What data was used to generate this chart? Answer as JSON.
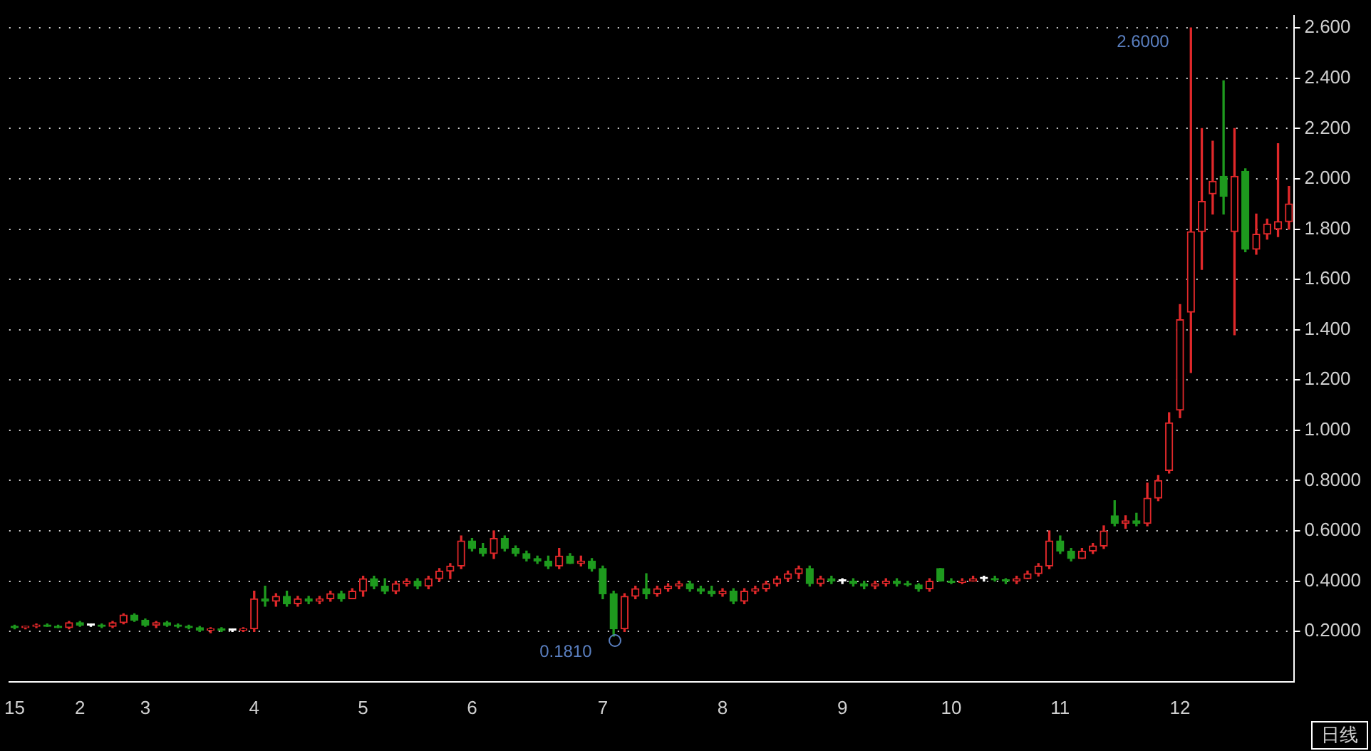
{
  "chart_data": {
    "type": "candlestick",
    "categories": [
      "15",
      null,
      null,
      null,
      null,
      null,
      "2",
      null,
      null,
      null,
      null,
      null,
      "3",
      null,
      null,
      null,
      null,
      null,
      null,
      null,
      null,
      null,
      "4",
      null,
      null,
      null,
      null,
      null,
      null,
      null,
      null,
      null,
      "5",
      null,
      null,
      null,
      null,
      null,
      null,
      null,
      null,
      null,
      "6",
      null,
      null,
      null,
      null,
      null,
      null,
      null,
      null,
      null,
      null,
      null,
      "7",
      null,
      null,
      null,
      null,
      null,
      null,
      null,
      null,
      null,
      null,
      "8",
      null,
      null,
      null,
      null,
      null,
      null,
      null,
      null,
      null,
      null,
      "9",
      null,
      null,
      null,
      null,
      null,
      null,
      null,
      null,
      null,
      "10",
      null,
      null,
      null,
      null,
      null,
      null,
      null,
      null,
      null,
      "11",
      null,
      null,
      null,
      null,
      null,
      null,
      null,
      null,
      null,
      null,
      "12",
      null,
      null,
      null,
      null,
      null,
      null,
      null,
      null,
      null,
      null
    ],
    "ohlc": [
      [
        0.22,
        0.225,
        0.21,
        0.215
      ],
      [
        0.215,
        0.22,
        0.21,
        0.22
      ],
      [
        0.22,
        0.23,
        0.215,
        0.225
      ],
      [
        0.225,
        0.23,
        0.22,
        0.22
      ],
      [
        0.22,
        0.225,
        0.215,
        0.215
      ],
      [
        0.215,
        0.24,
        0.21,
        0.235
      ],
      [
        0.235,
        0.24,
        0.22,
        0.225
      ],
      [
        0.225,
        0.23,
        0.22,
        0.225
      ],
      [
        0.225,
        0.23,
        0.215,
        0.22
      ],
      [
        0.22,
        0.24,
        0.215,
        0.235
      ],
      [
        0.235,
        0.27,
        0.23,
        0.265
      ],
      [
        0.265,
        0.27,
        0.24,
        0.245
      ],
      [
        0.245,
        0.25,
        0.22,
        0.225
      ],
      [
        0.225,
        0.24,
        0.215,
        0.235
      ],
      [
        0.235,
        0.24,
        0.22,
        0.225
      ],
      [
        0.225,
        0.23,
        0.215,
        0.22
      ],
      [
        0.22,
        0.225,
        0.21,
        0.215
      ],
      [
        0.215,
        0.22,
        0.2,
        0.205
      ],
      [
        0.205,
        0.215,
        0.195,
        0.21
      ],
      [
        0.21,
        0.215,
        0.2,
        0.205
      ],
      [
        0.205,
        0.21,
        0.2,
        0.205
      ],
      [
        0.205,
        0.215,
        0.2,
        0.21
      ],
      [
        0.21,
        0.36,
        0.2,
        0.33
      ],
      [
        0.33,
        0.38,
        0.3,
        0.32
      ],
      [
        0.32,
        0.35,
        0.3,
        0.34
      ],
      [
        0.34,
        0.36,
        0.3,
        0.31
      ],
      [
        0.31,
        0.34,
        0.3,
        0.33
      ],
      [
        0.33,
        0.34,
        0.31,
        0.32
      ],
      [
        0.32,
        0.34,
        0.31,
        0.33
      ],
      [
        0.33,
        0.36,
        0.32,
        0.35
      ],
      [
        0.35,
        0.36,
        0.32,
        0.33
      ],
      [
        0.33,
        0.37,
        0.33,
        0.36
      ],
      [
        0.36,
        0.42,
        0.34,
        0.41
      ],
      [
        0.41,
        0.42,
        0.37,
        0.38
      ],
      [
        0.38,
        0.41,
        0.35,
        0.36
      ],
      [
        0.36,
        0.4,
        0.35,
        0.39
      ],
      [
        0.39,
        0.41,
        0.38,
        0.4
      ],
      [
        0.4,
        0.41,
        0.37,
        0.38
      ],
      [
        0.38,
        0.42,
        0.37,
        0.41
      ],
      [
        0.41,
        0.45,
        0.4,
        0.44
      ],
      [
        0.44,
        0.47,
        0.41,
        0.46
      ],
      [
        0.46,
        0.58,
        0.45,
        0.56
      ],
      [
        0.56,
        0.57,
        0.52,
        0.53
      ],
      [
        0.53,
        0.55,
        0.5,
        0.51
      ],
      [
        0.51,
        0.6,
        0.49,
        0.57
      ],
      [
        0.57,
        0.58,
        0.52,
        0.53
      ],
      [
        0.53,
        0.54,
        0.5,
        0.51
      ],
      [
        0.51,
        0.52,
        0.48,
        0.49
      ],
      [
        0.49,
        0.5,
        0.47,
        0.48
      ],
      [
        0.48,
        0.5,
        0.45,
        0.46
      ],
      [
        0.46,
        0.53,
        0.45,
        0.5
      ],
      [
        0.5,
        0.51,
        0.47,
        0.47
      ],
      [
        0.47,
        0.5,
        0.46,
        0.48
      ],
      [
        0.48,
        0.49,
        0.44,
        0.45
      ],
      [
        0.45,
        0.46,
        0.33,
        0.35
      ],
      [
        0.35,
        0.36,
        0.181,
        0.21
      ],
      [
        0.21,
        0.35,
        0.2,
        0.34
      ],
      [
        0.34,
        0.38,
        0.33,
        0.37
      ],
      [
        0.37,
        0.43,
        0.33,
        0.35
      ],
      [
        0.35,
        0.38,
        0.34,
        0.37
      ],
      [
        0.37,
        0.39,
        0.36,
        0.38
      ],
      [
        0.38,
        0.4,
        0.37,
        0.39
      ],
      [
        0.39,
        0.4,
        0.36,
        0.37
      ],
      [
        0.37,
        0.38,
        0.35,
        0.36
      ],
      [
        0.36,
        0.38,
        0.34,
        0.35
      ],
      [
        0.35,
        0.37,
        0.34,
        0.36
      ],
      [
        0.36,
        0.37,
        0.31,
        0.32
      ],
      [
        0.32,
        0.37,
        0.31,
        0.36
      ],
      [
        0.36,
        0.38,
        0.35,
        0.37
      ],
      [
        0.37,
        0.4,
        0.36,
        0.39
      ],
      [
        0.39,
        0.42,
        0.38,
        0.41
      ],
      [
        0.41,
        0.44,
        0.4,
        0.43
      ],
      [
        0.43,
        0.46,
        0.41,
        0.45
      ],
      [
        0.45,
        0.46,
        0.38,
        0.39
      ],
      [
        0.39,
        0.42,
        0.38,
        0.41
      ],
      [
        0.41,
        0.42,
        0.39,
        0.4
      ],
      [
        0.4,
        0.41,
        0.39,
        0.4
      ],
      [
        0.4,
        0.41,
        0.38,
        0.39
      ],
      [
        0.39,
        0.4,
        0.37,
        0.38
      ],
      [
        0.38,
        0.4,
        0.37,
        0.39
      ],
      [
        0.39,
        0.41,
        0.38,
        0.4
      ],
      [
        0.4,
        0.41,
        0.38,
        0.39
      ],
      [
        0.39,
        0.4,
        0.38,
        0.385
      ],
      [
        0.385,
        0.39,
        0.36,
        0.37
      ],
      [
        0.37,
        0.41,
        0.36,
        0.4
      ],
      [
        0.45,
        0.45,
        0.4,
        0.4
      ],
      [
        0.4,
        0.41,
        0.39,
        0.395
      ],
      [
        0.395,
        0.41,
        0.39,
        0.4
      ],
      [
        0.4,
        0.42,
        0.4,
        0.41
      ],
      [
        0.41,
        0.42,
        0.4,
        0.41
      ],
      [
        0.41,
        0.42,
        0.4,
        0.405
      ],
      [
        0.405,
        0.41,
        0.39,
        0.4
      ],
      [
        0.4,
        0.42,
        0.39,
        0.41
      ],
      [
        0.41,
        0.44,
        0.41,
        0.43
      ],
      [
        0.43,
        0.47,
        0.42,
        0.46
      ],
      [
        0.46,
        0.6,
        0.45,
        0.56
      ],
      [
        0.56,
        0.58,
        0.51,
        0.52
      ],
      [
        0.52,
        0.53,
        0.48,
        0.49
      ],
      [
        0.49,
        0.53,
        0.49,
        0.52
      ],
      [
        0.52,
        0.55,
        0.51,
        0.54
      ],
      [
        0.54,
        0.62,
        0.53,
        0.6
      ],
      [
        0.66,
        0.72,
        0.62,
        0.63
      ],
      [
        0.63,
        0.66,
        0.61,
        0.64
      ],
      [
        0.64,
        0.67,
        0.62,
        0.63
      ],
      [
        0.63,
        0.79,
        0.62,
        0.73
      ],
      [
        0.73,
        0.82,
        0.72,
        0.8
      ],
      [
        0.84,
        1.07,
        0.83,
        1.03
      ],
      [
        1.08,
        1.5,
        1.05,
        1.44
      ],
      [
        1.47,
        2.6,
        1.23,
        1.79
      ],
      [
        1.79,
        2.2,
        1.64,
        1.91
      ],
      [
        1.94,
        2.15,
        1.86,
        1.99
      ],
      [
        2.01,
        2.39,
        1.86,
        1.93
      ],
      [
        1.79,
        2.2,
        1.38,
        2.01
      ],
      [
        2.03,
        2.04,
        1.71,
        1.72
      ],
      [
        1.72,
        1.86,
        1.7,
        1.78
      ],
      [
        1.78,
        1.84,
        1.76,
        1.82
      ],
      [
        1.8,
        2.14,
        1.77,
        1.83
      ],
      [
        1.83,
        1.97,
        1.8,
        1.9
      ]
    ],
    "colors": [
      "#1e9a1e",
      "#e0282a",
      "#e0282a",
      "#1e9a1e",
      "#1e9a1e",
      "#e0282a",
      "#1e9a1e",
      "#ffffff",
      "#1e9a1e",
      "#e0282a",
      "#e0282a",
      "#1e9a1e",
      "#1e9a1e",
      "#e0282a",
      "#1e9a1e",
      "#1e9a1e",
      "#1e9a1e",
      "#1e9a1e",
      "#e0282a",
      "#1e9a1e",
      "#ffffff",
      "#e0282a",
      "#e0282a",
      "#1e9a1e",
      "#e0282a",
      "#1e9a1e",
      "#e0282a",
      "#1e9a1e",
      "#e0282a",
      "#e0282a",
      "#1e9a1e",
      "#e0282a",
      "#e0282a",
      "#1e9a1e",
      "#1e9a1e",
      "#e0282a",
      "#e0282a",
      "#1e9a1e",
      "#e0282a",
      "#e0282a",
      "#e0282a",
      "#e0282a",
      "#1e9a1e",
      "#1e9a1e",
      "#e0282a",
      "#1e9a1e",
      "#1e9a1e",
      "#1e9a1e",
      "#1e9a1e",
      "#1e9a1e",
      "#e0282a",
      "#1e9a1e",
      "#e0282a",
      "#1e9a1e",
      "#1e9a1e",
      "#1e9a1e",
      "#e0282a",
      "#e0282a",
      "#1e9a1e",
      "#e0282a",
      "#e0282a",
      "#e0282a",
      "#1e9a1e",
      "#1e9a1e",
      "#1e9a1e",
      "#e0282a",
      "#1e9a1e",
      "#e0282a",
      "#e0282a",
      "#e0282a",
      "#e0282a",
      "#e0282a",
      "#e0282a",
      "#1e9a1e",
      "#e0282a",
      "#1e9a1e",
      "#ffffff",
      "#1e9a1e",
      "#1e9a1e",
      "#e0282a",
      "#e0282a",
      "#1e9a1e",
      "#1e9a1e",
      "#1e9a1e",
      "#e0282a",
      "#1e9a1e",
      "#1e9a1e",
      "#e0282a",
      "#e0282a",
      "#ffffff",
      "#1e9a1e",
      "#1e9a1e",
      "#e0282a",
      "#e0282a",
      "#e0282a",
      "#e0282a",
      "#1e9a1e",
      "#1e9a1e",
      "#e0282a",
      "#e0282a",
      "#e0282a",
      "#1e9a1e",
      "#e0282a",
      "#1e9a1e",
      "#e0282a",
      "#e0282a",
      "#e0282a",
      "#e0282a",
      "#e0282a",
      "#e0282a",
      "#e0282a",
      "#1e9a1e",
      "#e0282a",
      "#1e9a1e",
      "#e0282a",
      "#e0282a",
      "#e0282a",
      "#e0282a"
    ],
    "ylim": [
      0,
      2.65
    ],
    "yticks": [
      {
        "value": 0.2,
        "label": "0.2000"
      },
      {
        "value": 0.4,
        "label": "0.4000"
      },
      {
        "value": 0.6,
        "label": "0.6000"
      },
      {
        "value": 0.8,
        "label": "0.8000"
      },
      {
        "value": 1.0,
        "label": "1.000"
      },
      {
        "value": 1.2,
        "label": "1.200"
      },
      {
        "value": 1.4,
        "label": "1.400"
      },
      {
        "value": 1.6,
        "label": "1.600"
      },
      {
        "value": 1.8,
        "label": "1.800"
      },
      {
        "value": 2.0,
        "label": "2.000"
      },
      {
        "value": 2.2,
        "label": "2.200"
      },
      {
        "value": 2.4,
        "label": "2.400"
      },
      {
        "value": 2.6,
        "label": "2.600"
      }
    ],
    "grid": "y",
    "annotations": [
      "2.6000",
      "0.1810",
      "日线"
    ]
  }
}
